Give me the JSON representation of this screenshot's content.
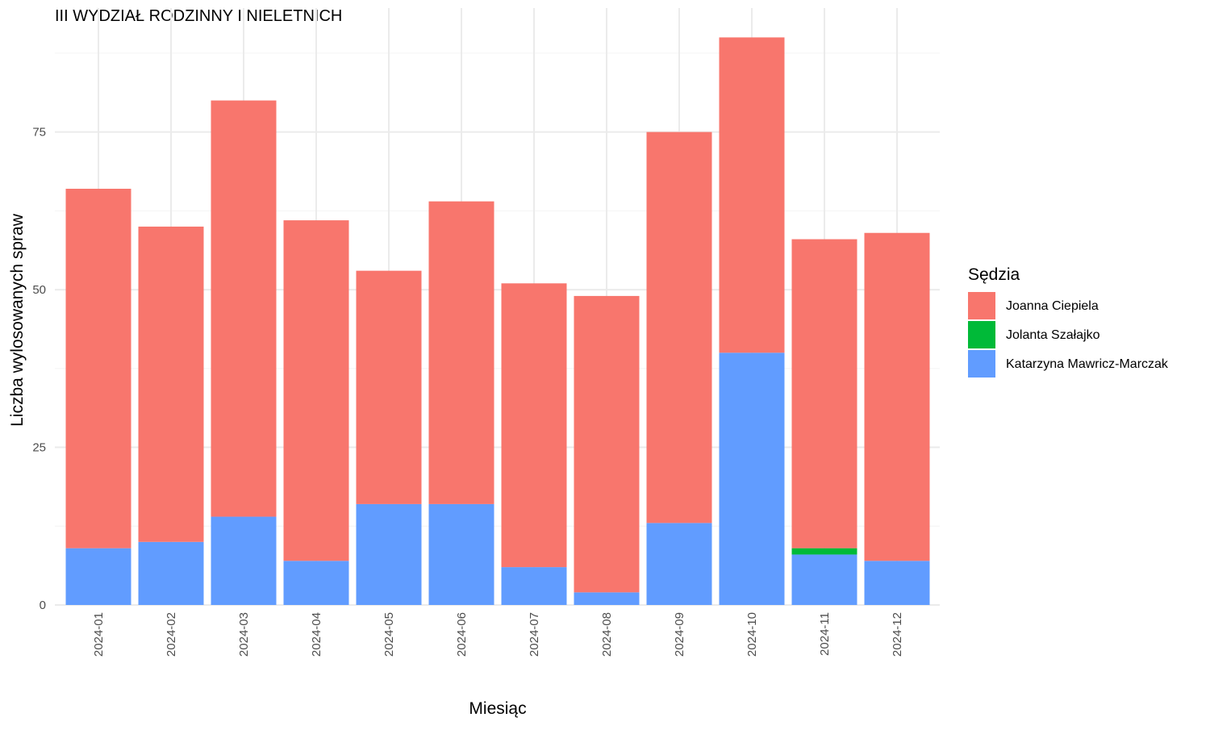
{
  "chart_data": {
    "type": "bar",
    "stacked": true,
    "title": "III WYDZIAŁ RODZINNY I NIELETNICH",
    "xlabel": "Miesiąc",
    "ylabel": "Liczba wylosowanych spraw",
    "categories": [
      "2024-01",
      "2024-02",
      "2024-03",
      "2024-04",
      "2024-05",
      "2024-06",
      "2024-07",
      "2024-08",
      "2024-09",
      "2024-10",
      "2024-11",
      "2024-12"
    ],
    "series": [
      {
        "name": "Katarzyna Mawricz-Marczak",
        "color": "#619CFF",
        "values": [
          9,
          10,
          14,
          7,
          16,
          16,
          6,
          2,
          13,
          40,
          8,
          7
        ]
      },
      {
        "name": "Jolanta Szałajko",
        "color": "#00BA38",
        "values": [
          0,
          0,
          0,
          0,
          0,
          0,
          0,
          0,
          0,
          0,
          1,
          0
        ]
      },
      {
        "name": "Joanna Ciepiela",
        "color": "#F8766D",
        "values": [
          57,
          50,
          66,
          54,
          37,
          48,
          45,
          47,
          62,
          50,
          49,
          52
        ]
      }
    ],
    "legend": {
      "title": "Sędzia",
      "position": "right",
      "entries": [
        "Joanna Ciepiela",
        "Jolanta Szałajko",
        "Katarzyna Mawricz-Marczak"
      ]
    },
    "yticks": [
      0,
      25,
      50,
      75
    ],
    "ylim": [
      0,
      94
    ],
    "grid": true
  }
}
